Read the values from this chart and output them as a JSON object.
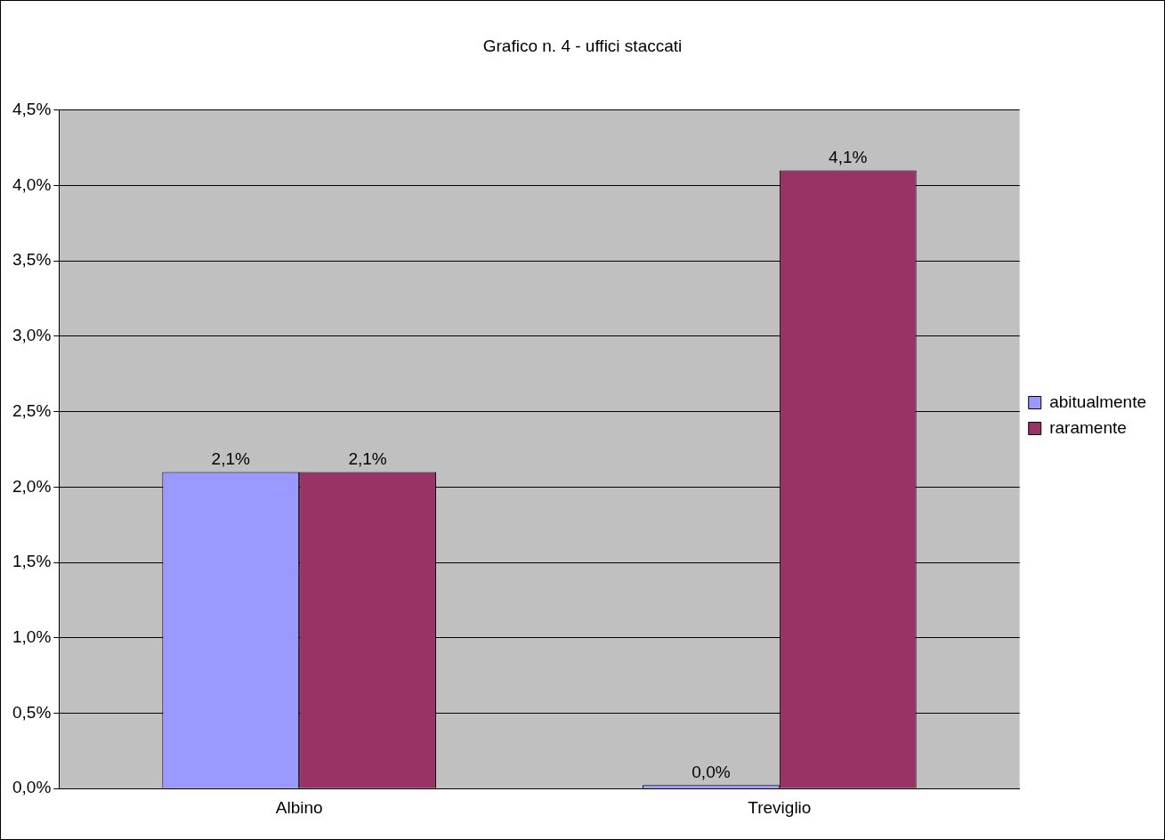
{
  "chart_data": {
    "type": "bar",
    "title": "Grafico n. 4 - uffici staccati",
    "categories": [
      "Albino",
      "Treviglio"
    ],
    "series": [
      {
        "name": "abitualmente",
        "color": "#9999ff",
        "values": [
          2.1,
          0.0
        ],
        "value_labels": [
          "2,1%",
          "0,0%"
        ]
      },
      {
        "name": "raramente",
        "color": "#993366",
        "values": [
          2.1,
          4.1
        ],
        "value_labels": [
          "2,1%",
          "4,1%"
        ]
      }
    ],
    "ylim": [
      0,
      4.5
    ],
    "yticks": [
      {
        "value": 0,
        "label": "0,0%"
      },
      {
        "value": 0.5,
        "label": "0,5%"
      },
      {
        "value": 1,
        "label": "1,0%"
      },
      {
        "value": 1.5,
        "label": "1,5%"
      },
      {
        "value": 2,
        "label": "2,0%"
      },
      {
        "value": 2.5,
        "label": "2,5%"
      },
      {
        "value": 3,
        "label": "3,0%"
      },
      {
        "value": 3.5,
        "label": "3,5%"
      },
      {
        "value": 4,
        "label": "4,0%"
      },
      {
        "value": 4.5,
        "label": "4,5%"
      }
    ],
    "grid": "y",
    "legend": "right"
  }
}
